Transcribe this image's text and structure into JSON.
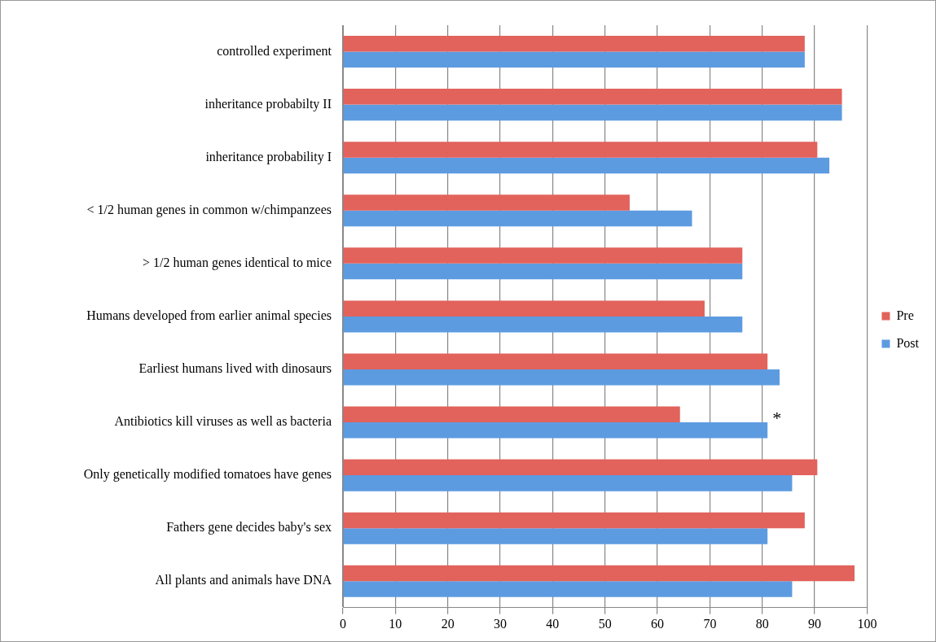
{
  "chart_data": {
    "type": "bar",
    "orientation": "horizontal",
    "categories": [
      "controlled experiment",
      "inheritance probabilty II",
      "inheritance probability I",
      "< 1/2 human genes in common w/chimpanzees",
      "> 1/2 human genes identical to mice",
      "Humans developed from earlier animal species",
      "Earliest humans lived with dinosaurs",
      "Antibiotics kill viruses as well as bacteria",
      "Only genetically modified tomatoes have genes",
      "Fathers gene decides baby's sex",
      "All plants and animals have DNA"
    ],
    "series": [
      {
        "name": "Pre",
        "color": "#e2625c",
        "values": [
          88.1,
          95.2,
          90.5,
          54.7,
          76.2,
          69.0,
          81.0,
          64.3,
          90.5,
          88.1,
          97.6
        ]
      },
      {
        "name": "Post",
        "color": "#5d9be0",
        "values": [
          88.1,
          95.2,
          92.8,
          66.6,
          76.2,
          76.2,
          83.3,
          81.0,
          85.7,
          81.0,
          85.7
        ]
      }
    ],
    "xlim": [
      0,
      100
    ],
    "xticks": [
      0,
      10,
      20,
      30,
      40,
      50,
      60,
      70,
      80,
      90,
      100
    ],
    "grid": "x",
    "legend": "right",
    "annotations": [
      {
        "text": "*",
        "x": 81,
        "y": "Antibiotics kill viruses as well as bacteria"
      }
    ]
  }
}
